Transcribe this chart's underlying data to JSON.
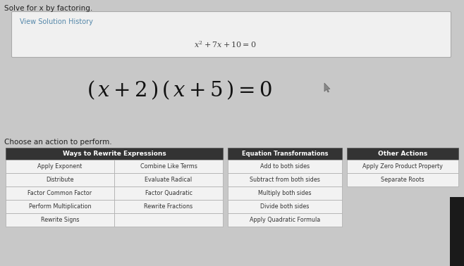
{
  "title": "Solve for x by factoring.",
  "view_solution_history": "View Solution History",
  "equation_small": "$x^2+7x+10=0$",
  "choose_action": "Choose an action to perform.",
  "col1_header": "Ways to Rewrite Expressions",
  "col2_header": "Equation Transformations",
  "col3_header": "Other Actions",
  "col1_rows": [
    [
      "Apply Exponent",
      "Combine Like Terms"
    ],
    [
      "Distribute",
      "Evaluate Radical"
    ],
    [
      "Factor Common Factor",
      "Factor Quadratic"
    ],
    [
      "Perform Multiplication",
      "Rewrite Fractions"
    ],
    [
      "Rewrite Signs",
      ""
    ]
  ],
  "col2_rows": [
    "Add to both sides",
    "Subtract from both sides",
    "Multiply both sides",
    "Divide both sides",
    "Apply Quadratic Formula"
  ],
  "col3_rows": [
    "Apply Zero Product Property",
    "Separate Roots"
  ],
  "bg_color": "#c8c8c8",
  "panel_bg": "#efefef",
  "header_bg": "#333333",
  "header_fg": "#ffffff",
  "cell_bg": "#f2f2f2",
  "cell_border": "#aaaaaa",
  "vsh_link_color": "#5588aa",
  "title_color": "#222222",
  "eq_small_color": "#444444",
  "eq_large_color": "#111111",
  "dark_bar_color": "#1a1a1a",
  "fig_w": 6.58,
  "fig_h": 3.78,
  "dpi": 100
}
